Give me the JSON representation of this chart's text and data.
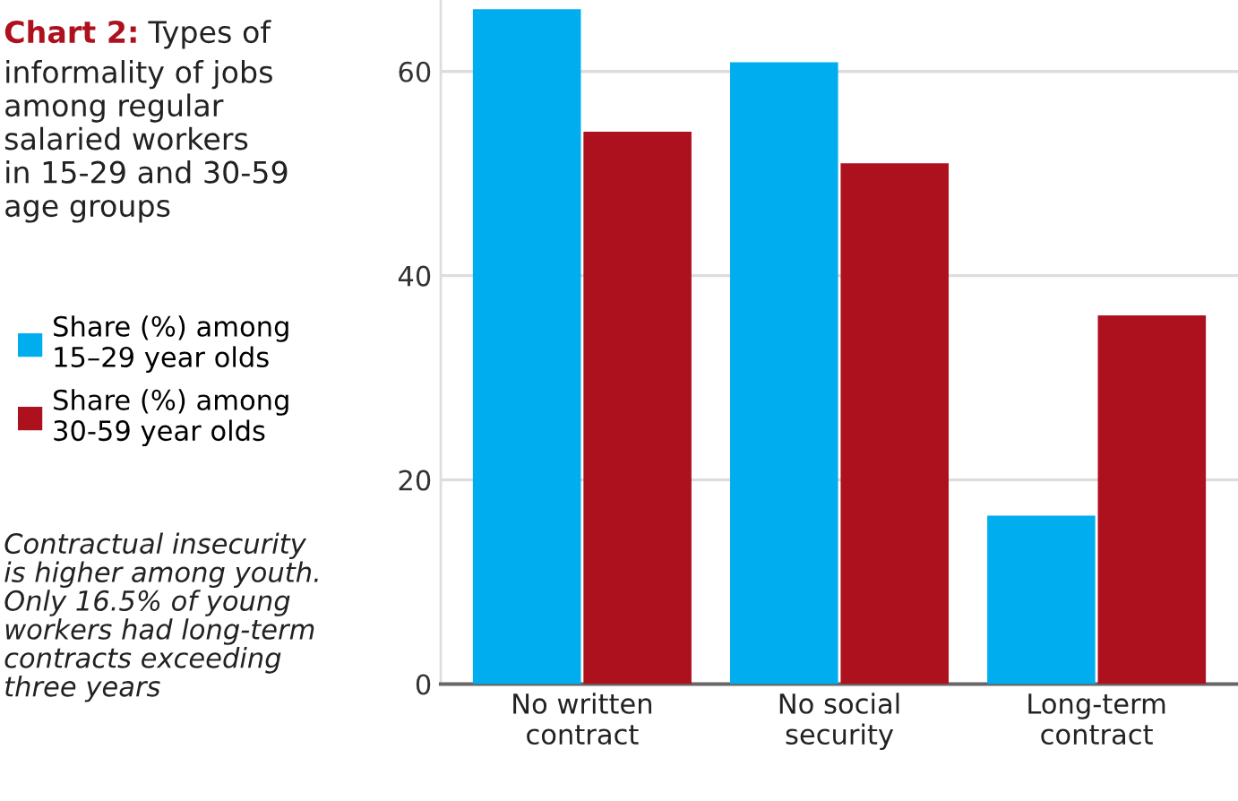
{
  "chart_data": {
    "type": "bar",
    "title": "Chart 2: Types of\ninformality of jobs\namong regular\nsalaried workers\nin 15-29 and 30-59\nage groups",
    "categories": [
      "No written\ncontract",
      "No social\nsecurity",
      "Long-term\ncontract"
    ],
    "series": [
      {
        "name": "Share (%) among\n15–29 year olds",
        "color": "#00aeef",
        "values": [
          66.1,
          60.9,
          16.5
        ]
      },
      {
        "name": "Share (%) among\n30-59 year olds",
        "color": "#ae111e",
        "values": [
          54.1,
          51.0,
          36.1
        ]
      }
    ],
    "ylim": [
      0,
      67
    ],
    "yticks": [
      0,
      20,
      40,
      60
    ],
    "grid": "y",
    "legend": "left",
    "annotations": [
      "Contractual insecurity\nis higher among youth.\nOnly 16.5% of young\nworkers had long-term\ncontracts exceeding\nthree years"
    ]
  }
}
